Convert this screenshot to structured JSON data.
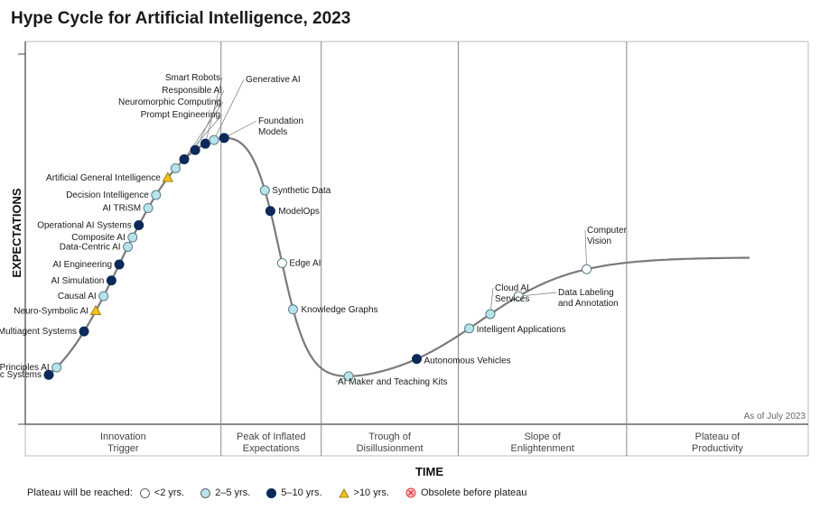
{
  "chart_data": {
    "type": "scatter",
    "title": "Hype Cycle for Artificial Intelligence, 2023",
    "xlabel": "TIME",
    "ylabel": "EXPECTATIONS",
    "as_of": "As of July 2023",
    "phases": [
      {
        "name": "Innovation Trigger",
        "lines": [
          "Innovation",
          "Trigger"
        ]
      },
      {
        "name": "Peak of Inflated Expectations",
        "lines": [
          "Peak of Inflated",
          "Expectations"
        ]
      },
      {
        "name": "Trough of Disillusionment",
        "lines": [
          "Trough of",
          "Disillusionment"
        ]
      },
      {
        "name": "Slope of Enlightenment",
        "lines": [
          "Slope of",
          "Enlightenment"
        ]
      },
      {
        "name": "Plateau of Productivity",
        "lines": [
          "Plateau of",
          "Productivity"
        ]
      }
    ],
    "categories": {
      "lt2": {
        "label": "<2 yrs.",
        "color": "#ffffff"
      },
      "2to5": {
        "label": "2–5 yrs.",
        "color": "#b7e3ea"
      },
      "5to10": {
        "label": "5–10 yrs.",
        "color": "#0b2a5a"
      },
      "gt10": {
        "label": ">10 yrs.",
        "color": "#f3c21b"
      },
      "obsolete": {
        "label": "Obsolete before plateau",
        "color": "#e23b3b"
      }
    },
    "points": [
      {
        "name": "Autonomic Systems",
        "t": 0.03,
        "cat": "5to10"
      },
      {
        "name": "First-Principles AI",
        "t": 0.04,
        "cat": "2to5"
      },
      {
        "name": "Multiagent Systems",
        "t": 0.075,
        "cat": "5to10"
      },
      {
        "name": "Neuro-Symbolic AI",
        "t": 0.09,
        "cat": "gt10"
      },
      {
        "name": "Causal AI",
        "t": 0.1,
        "cat": "2to5"
      },
      {
        "name": "AI Simulation",
        "t": 0.11,
        "cat": "5to10"
      },
      {
        "name": "AI Engineering",
        "t": 0.12,
        "cat": "5to10"
      },
      {
        "name": "Data-Centric AI",
        "t": 0.131,
        "cat": "2to5"
      },
      {
        "name": "Composite AI",
        "t": 0.137,
        "cat": "2to5"
      },
      {
        "name": "Operational AI Systems",
        "t": 0.145,
        "cat": "5to10"
      },
      {
        "name": "AI TRiSM",
        "t": 0.157,
        "cat": "2to5"
      },
      {
        "name": "Decision Intelligence",
        "t": 0.167,
        "cat": "2to5"
      },
      {
        "name": "Artificial General Intelligence",
        "t": 0.182,
        "cat": "gt10"
      },
      {
        "name": "Prompt Engineering",
        "t": 0.192,
        "cat": "2to5"
      },
      {
        "name": "Neuromorphic Computing",
        "t": 0.203,
        "cat": "5to10"
      },
      {
        "name": "Responsible AI",
        "t": 0.217,
        "cat": "5to10"
      },
      {
        "name": "Smart Robots",
        "t": 0.23,
        "cat": "5to10"
      },
      {
        "name": "Generative AI",
        "t": 0.241,
        "cat": "2to5"
      },
      {
        "name": "Foundation Models",
        "t": 0.254,
        "cat": "5to10"
      },
      {
        "name": "Synthetic Data",
        "t": 0.306,
        "cat": "2to5"
      },
      {
        "name": "ModelOps",
        "t": 0.313,
        "cat": "5to10"
      },
      {
        "name": "Edge AI",
        "t": 0.328,
        "cat": "lt2"
      },
      {
        "name": "Knowledge Graphs",
        "t": 0.342,
        "cat": "2to5"
      },
      {
        "name": "AI Maker and Teaching Kits",
        "t": 0.413,
        "cat": "2to5"
      },
      {
        "name": "Autonomous Vehicles",
        "t": 0.5,
        "cat": "5to10"
      },
      {
        "name": "Intelligent Applications",
        "t": 0.567,
        "cat": "2to5"
      },
      {
        "name": "Cloud AI Services",
        "t": 0.594,
        "cat": "2to5"
      },
      {
        "name": "Data Labeling and Annotation",
        "t": 0.63,
        "cat": "lt2"
      },
      {
        "name": "Computer Vision",
        "t": 0.717,
        "cat": "lt2"
      }
    ]
  },
  "legend": {
    "title": "Plateau will be reached:"
  }
}
